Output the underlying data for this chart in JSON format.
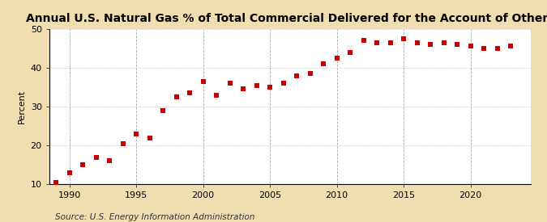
{
  "title": "Annual U.S. Natural Gas % of Total Commercial Delivered for the Account of Others",
  "ylabel": "Percent",
  "source": "Source: U.S. Energy Information Administration",
  "background_color": "#f0deb0",
  "plot_background_color": "#ffffff",
  "marker_color": "#cc0000",
  "years": [
    1989,
    1990,
    1991,
    1992,
    1993,
    1994,
    1995,
    1996,
    1997,
    1998,
    1999,
    2000,
    2001,
    2002,
    2003,
    2004,
    2005,
    2006,
    2007,
    2008,
    2009,
    2010,
    2011,
    2012,
    2013,
    2014,
    2015,
    2016,
    2017,
    2018,
    2019,
    2020,
    2021,
    2022,
    2023
  ],
  "values": [
    10.5,
    13.0,
    15.0,
    17.0,
    16.0,
    20.5,
    23.0,
    22.0,
    29.0,
    32.5,
    33.5,
    36.5,
    33.0,
    36.0,
    34.5,
    35.5,
    35.0,
    36.0,
    38.0,
    38.5,
    41.0,
    42.5,
    44.0,
    47.0,
    46.5,
    46.5,
    47.5,
    46.5,
    46.0,
    46.5,
    46.0,
    45.5,
    45.0,
    45.0,
    45.5
  ],
  "xlim": [
    1988.5,
    2024.5
  ],
  "ylim": [
    10,
    50
  ],
  "yticks": [
    10,
    20,
    30,
    40,
    50
  ],
  "xticks": [
    1990,
    1995,
    2000,
    2005,
    2010,
    2015,
    2020
  ],
  "vgrid_color": "#aaaaaa",
  "hgrid_color": "#aaaaaa",
  "title_fontsize": 10,
  "axis_fontsize": 8,
  "source_fontsize": 7.5
}
